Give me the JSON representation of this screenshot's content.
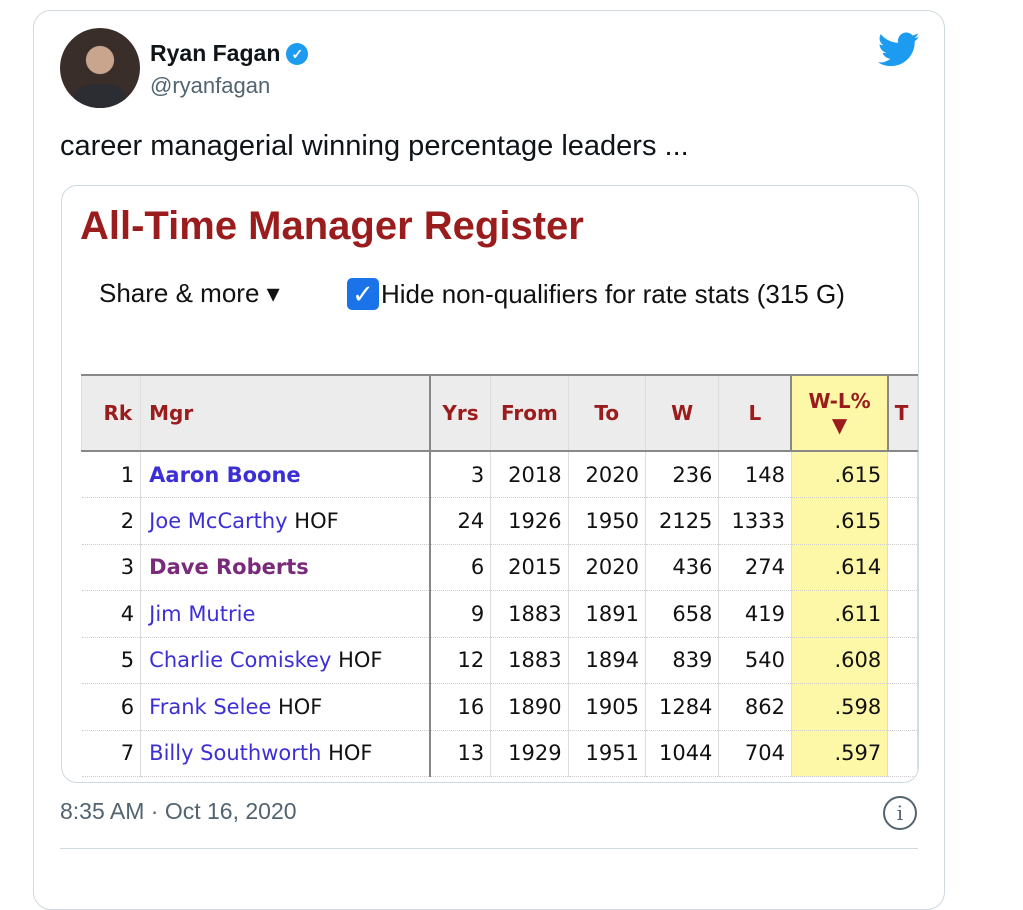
{
  "author": {
    "name": "Ryan Fagan",
    "handle": "@ryanfagan"
  },
  "tweet_text": "career managerial winning percentage leaders ...",
  "timestamp": "8:35 AM · Oct 16, 2020",
  "embed": {
    "title": "All-Time Manager Register",
    "share_label": "Share & more ▾",
    "checkbox_label": "Hide non-qualifiers for rate stats (315 G)",
    "checkbox_checked": true,
    "columns": [
      "Rk",
      "Mgr",
      "Yrs",
      "From",
      "To",
      "W",
      "L",
      "W-L%",
      "T"
    ],
    "sort_indicator": "▼",
    "rows": [
      {
        "rk": "1",
        "mgr": "Aaron Boone",
        "hof": "",
        "yrs": "3",
        "from": "2018",
        "to": "2020",
        "w": "236",
        "l": "148",
        "pct": ".615"
      },
      {
        "rk": "2",
        "mgr": "Joe McCarthy",
        "hof": "HOF",
        "yrs": "24",
        "from": "1926",
        "to": "1950",
        "w": "2125",
        "l": "1333",
        "pct": ".615"
      },
      {
        "rk": "3",
        "mgr": "Dave Roberts",
        "hof": "",
        "yrs": "6",
        "from": "2015",
        "to": "2020",
        "w": "436",
        "l": "274",
        "pct": ".614"
      },
      {
        "rk": "4",
        "mgr": "Jim Mutrie",
        "hof": "",
        "yrs": "9",
        "from": "1883",
        "to": "1891",
        "w": "658",
        "l": "419",
        "pct": ".611"
      },
      {
        "rk": "5",
        "mgr": "Charlie Comiskey",
        "hof": "HOF",
        "yrs": "12",
        "from": "1883",
        "to": "1894",
        "w": "839",
        "l": "540",
        "pct": ".608"
      },
      {
        "rk": "6",
        "mgr": "Frank Selee",
        "hof": "HOF",
        "yrs": "16",
        "from": "1890",
        "to": "1905",
        "w": "1284",
        "l": "862",
        "pct": ".598"
      },
      {
        "rk": "7",
        "mgr": "Billy Southworth",
        "hof": "HOF",
        "yrs": "13",
        "from": "1929",
        "to": "1951",
        "w": "1044",
        "l": "704",
        "pct": ".597"
      }
    ]
  },
  "colors": {
    "title": "#9b1c1c",
    "highlight": "#fdf8a8",
    "twitter_blue": "#1d9bf0"
  }
}
